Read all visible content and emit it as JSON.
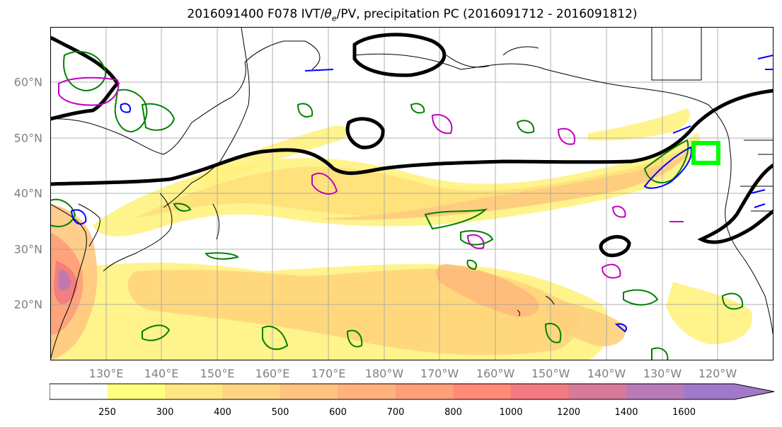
{
  "title": {
    "date": "2016091400",
    "forecast": "F078",
    "ivt": "IVT/",
    "theta": "θ",
    "theta_sub": "e",
    "pv": "/PV, precipitation PC (2016091712 - 2016091812)"
  },
  "map": {
    "lat_labels": [
      "60°N",
      "50°N",
      "40°N",
      "30°N",
      "20°N"
    ],
    "lon_labels": [
      "130°E",
      "140°E",
      "150°E",
      "160°E",
      "170°E",
      "180°W",
      "170°W",
      "160°W",
      "150°W",
      "140°W",
      "130°W",
      "120°W"
    ],
    "lat_range": [
      10,
      70
    ],
    "lon_range": [
      120,
      250
    ]
  },
  "colorbar": {
    "levels": [
      "250",
      "300",
      "400",
      "500",
      "600",
      "700",
      "800",
      "1000",
      "1200",
      "1400",
      "1600"
    ],
    "colors": [
      "#ffff80",
      "#ffe680",
      "#ffd480",
      "#ffc380",
      "#ffb27d",
      "#ff9f7a",
      "#ff8a78",
      "#f27a80",
      "#d67a9a",
      "#b87ab6",
      "#a07ac8"
    ]
  },
  "contour_colors": {
    "pv": "#000000",
    "theta_e": "#008000",
    "precip_pos": "#0000ff",
    "precip_neg": "#c000c0",
    "target_box": "#00ff00"
  }
}
